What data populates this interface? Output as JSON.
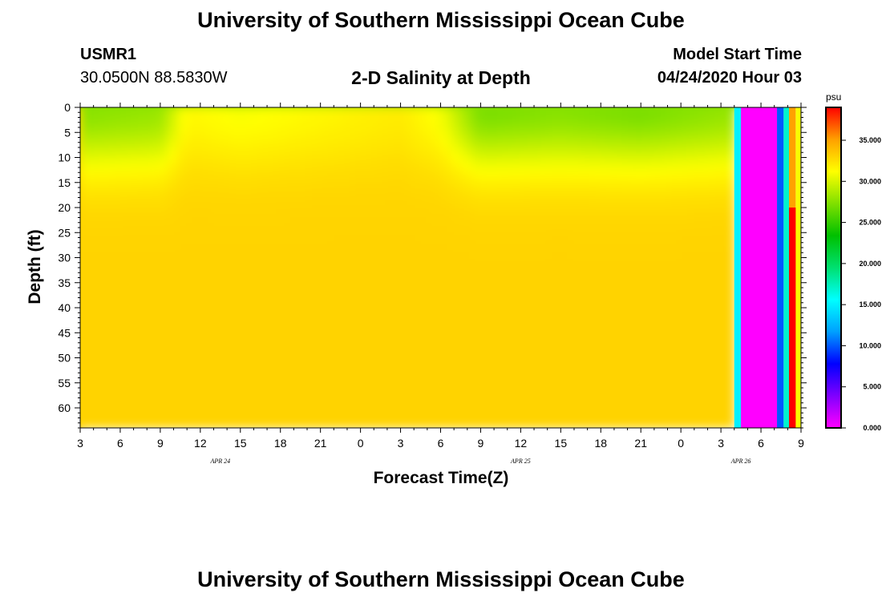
{
  "header": {
    "title": "University of Southern Mississippi Ocean Cube",
    "station_id": "USMR1",
    "station_coords": "30.0500N 88.5830W",
    "plot_title": "2-D Salinity at Depth",
    "model_label": "Model Start Time",
    "model_time": "04/24/2020 Hour 03"
  },
  "footer": {
    "title": "University of Southern Mississippi Ocean Cube"
  },
  "colors": {
    "background": "#ffffff",
    "colormap": [
      "#ff00ff",
      "#8000ff",
      "#0000ff",
      "#00a0ff",
      "#00ffff",
      "#00e070",
      "#00c000",
      "#80e000",
      "#ffff00",
      "#ffa000",
      "#ff0000"
    ]
  },
  "chart_data": {
    "type": "heatmap",
    "title": "2-D Salinity at Depth",
    "xlabel": "Forecast Time(Z)",
    "ylabel": "Depth (ft)",
    "x_ticks": [
      "3",
      "6",
      "9",
      "12",
      "15",
      "18",
      "21",
      "0",
      "3",
      "6",
      "9",
      "12",
      "15",
      "18",
      "21",
      "0",
      "3",
      "6",
      "9"
    ],
    "x_date_labels": [
      {
        "label": "APR 24",
        "at_tick": 3.5
      },
      {
        "label": "APR 25",
        "at_tick": 11
      },
      {
        "label": "APR 26",
        "at_tick": 16.5
      }
    ],
    "x_range_hours": [
      0,
      54
    ],
    "ylim": [
      0,
      64
    ],
    "y_inverted": true,
    "y_ticks": [
      0,
      5,
      10,
      15,
      20,
      25,
      30,
      35,
      40,
      45,
      50,
      55,
      60
    ],
    "colorbar": {
      "units": "psu",
      "range": [
        0,
        39
      ],
      "ticks": [
        0,
        5,
        10,
        15,
        20,
        25,
        30,
        35
      ],
      "tick_labels": [
        "0.000",
        "5.000",
        "10.000",
        "15.000",
        "20.000",
        "25.000",
        "30.000",
        "35.000"
      ]
    },
    "surface_salinity": [
      {
        "hour": 0,
        "value": 27.5
      },
      {
        "hour": 6,
        "value": 28
      },
      {
        "hour": 8,
        "value": 31.5
      },
      {
        "hour": 12,
        "value": 31
      },
      {
        "hour": 18,
        "value": 31.5
      },
      {
        "hour": 24,
        "value": 32
      },
      {
        "hour": 27,
        "value": 31
      },
      {
        "hour": 30,
        "value": 27
      },
      {
        "hour": 36,
        "value": 27.5
      },
      {
        "hour": 42,
        "value": 27
      },
      {
        "hour": 49,
        "value": 28
      }
    ],
    "deep_salinity": 33,
    "anomaly_bands": [
      {
        "hour_start": 49,
        "hour_end": 49.5,
        "value": 15
      },
      {
        "hour_start": 49.5,
        "hour_end": 52.2,
        "value": 0
      },
      {
        "hour_start": 52.2,
        "hour_end": 52.7,
        "value": 10
      },
      {
        "hour_start": 52.7,
        "hour_end": 53.1,
        "value": 17
      },
      {
        "hour_start": 53.6,
        "hour_end": 54,
        "value": 31
      }
    ]
  }
}
